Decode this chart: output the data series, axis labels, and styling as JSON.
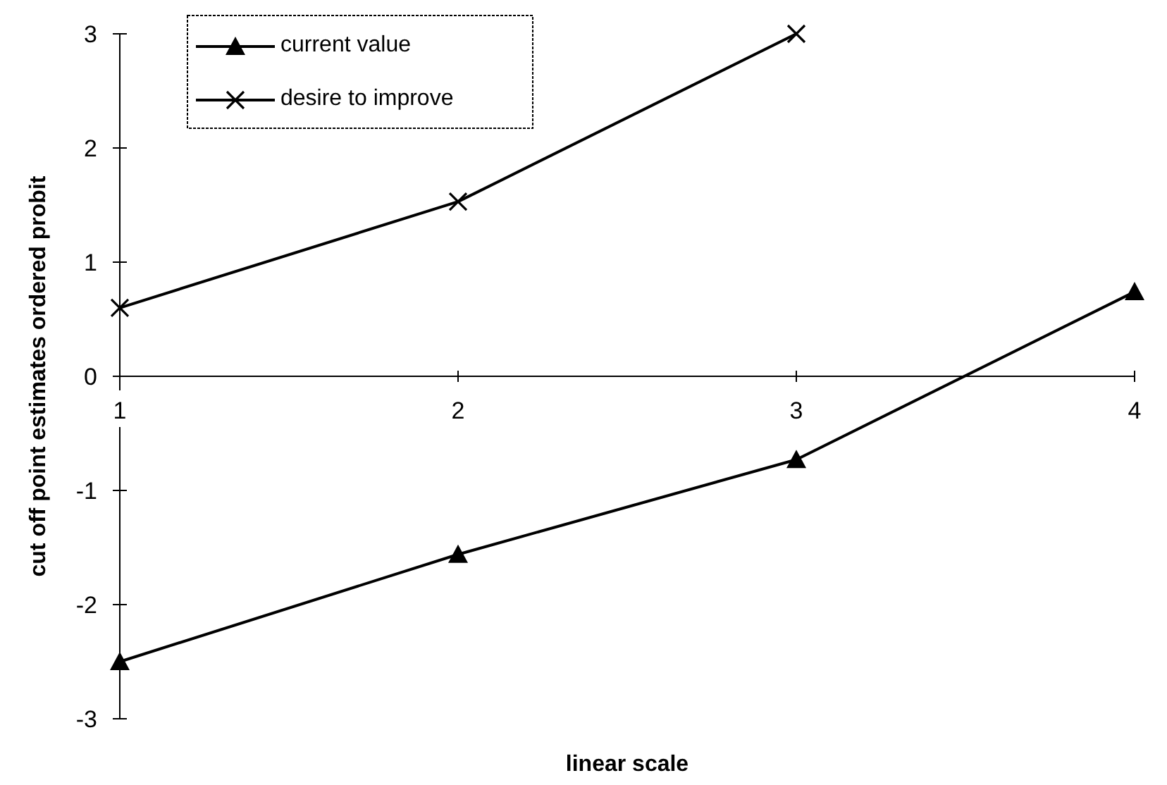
{
  "chart_data": {
    "type": "line",
    "xlabel": "linear scale",
    "ylabel": "cut off point estimates ordered probit",
    "x": [
      1,
      2,
      3,
      4
    ],
    "xlim": [
      1,
      4
    ],
    "xticks": [
      1,
      2,
      3,
      4
    ],
    "ylim": [
      -3,
      3
    ],
    "yticks": [
      -3,
      -2,
      -1,
      0,
      1,
      2,
      3
    ],
    "grid": false,
    "legend": "top left",
    "line_style": "solid",
    "series": [
      {
        "name": "current value",
        "color": "#000000",
        "marker": "triangle",
        "values": [
          -2.5,
          -1.56,
          -0.73,
          0.74
        ]
      },
      {
        "name": "desire to improve",
        "color": "#000000",
        "marker": "cross",
        "values": [
          0.6,
          1.53,
          3.0,
          null
        ]
      }
    ]
  }
}
